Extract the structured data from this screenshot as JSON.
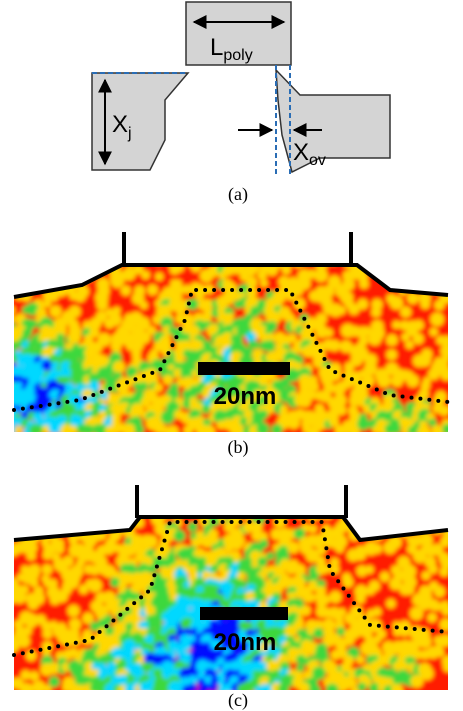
{
  "panels": [
    {
      "label": "(a)",
      "gate_length": {
        "main": "L",
        "sub": "poly"
      },
      "junction_depth": {
        "main": "X",
        "sub": "j"
      },
      "overlap": {
        "main": "X",
        "sub": "ov"
      }
    },
    {
      "label": "(b)",
      "scale_bar": "20nm"
    },
    {
      "label": "(c)",
      "scale_bar": "20nm"
    }
  ]
}
